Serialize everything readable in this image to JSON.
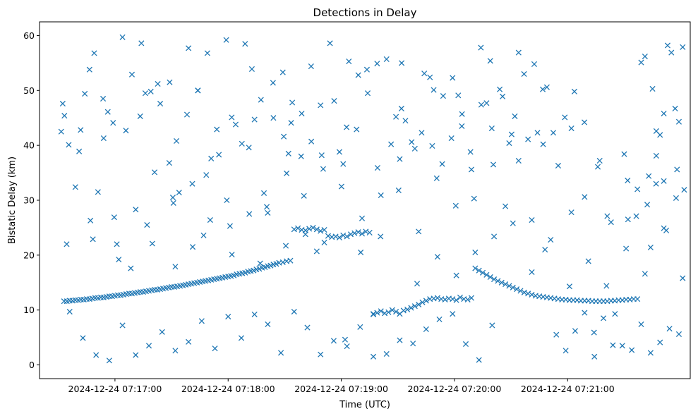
{
  "chart_data": {
    "type": "scatter",
    "title": "Detections in Delay",
    "xlabel": "Time (UTC)",
    "ylabel": "Bistatic Delay (km)",
    "xlim_seconds_of_day": [
      26180,
      26525
    ],
    "ylim": [
      -2.5,
      62.5
    ],
    "x_ticks": [
      {
        "t": 26220,
        "label": "2024-12-24 07:17:00"
      },
      {
        "t": 26280,
        "label": "2024-12-24 07:18:00"
      },
      {
        "t": 26340,
        "label": "2024-12-24 07:19:00"
      },
      {
        "t": 26400,
        "label": "2024-12-24 07:20:00"
      },
      {
        "t": 26460,
        "label": "2024-12-24 07:21:00"
      }
    ],
    "y_ticks": [
      0,
      10,
      20,
      30,
      40,
      50,
      60
    ],
    "marker": "x",
    "color": "#1f77b4",
    "grid": false,
    "series": [
      {
        "time_of_day_seconds": [
          26193.0,
          26194.5,
          26196.0,
          26197.5,
          26199.0,
          26200.5,
          26202.0,
          26203.5,
          26205.0,
          26206.5,
          26208.0,
          26209.5,
          26211.0,
          26212.5,
          26214.0,
          26215.5,
          26217.0,
          26218.5,
          26220.0,
          26221.5,
          26223.0,
          26224.5,
          26226.0,
          26227.5,
          26229.0,
          26230.5,
          26232.0,
          26233.5,
          26235.0,
          26236.5,
          26238.0,
          26239.5,
          26241.0,
          26242.5,
          26244.0,
          26245.5,
          26247.0,
          26248.5,
          26250.0,
          26251.5,
          26253.0,
          26254.5,
          26256.0,
          26257.5,
          26259.0,
          26260.5,
          26262.0,
          26263.5,
          26265.0,
          26266.5,
          26268.0,
          26269.5,
          26271.0,
          26272.5,
          26274.0,
          26275.5,
          26277.0,
          26278.5,
          26280.0,
          26281.5,
          26283.0,
          26284.5,
          26286.0,
          26287.5,
          26289.0,
          26290.5,
          26292.0,
          26293.5,
          26295.0,
          26296.5,
          26298.0,
          26299.5,
          26301.0,
          26302.5,
          26304.0,
          26305.5,
          26307.0,
          26309.0,
          26311.0,
          26313.0,
          26315.0,
          26317.0,
          26319.0,
          26321.0,
          26323.0,
          26325.0,
          26327.0,
          26329.0,
          26331.0,
          26333.0,
          26335.0,
          26337.0,
          26339.0,
          26341.0,
          26343.0,
          26345.0,
          26347.0,
          26349.0,
          26351.0,
          26353.0,
          26355.0,
          26357.0,
          26359.0,
          26361.0,
          26363.0,
          26365.0,
          26367.0,
          26369.0,
          26371.0,
          26373.0,
          26375.0,
          26377.0,
          26379.0,
          26381.0,
          26383.0,
          26385.0,
          26387.0,
          26389.0,
          26391.0,
          26393.0,
          26395.0,
          26397.0,
          26399.0,
          26401.0,
          26403.0,
          26405.0,
          26407.0,
          26409.0,
          26411.0,
          26413.0,
          26415.0,
          26417.0,
          26419.0,
          26421.0,
          26423.0,
          26425.0,
          26427.0,
          26429.0,
          26431.0,
          26433.0,
          26435.0,
          26437.0,
          26439.0,
          26441.0,
          26443.0,
          26445.0,
          26447.0,
          26449.0,
          26451.0,
          26453.0,
          26455.0,
          26457.0,
          26459.0,
          26461.0,
          26463.0,
          26465.0,
          26467.0,
          26469.0,
          26471.0,
          26473.0,
          26475.0,
          26477.0,
          26479.0,
          26481.0,
          26483.0,
          26485.0,
          26487.0,
          26489.0,
          26491.0,
          26493.0,
          26495.0,
          26497.0,
          26499.0,
          26501.0,
          26503.0,
          26505.0,
          26507.0,
          26509.0,
          26511.0,
          26513.0,
          26515.0,
          26517.0,
          26519.0,
          26521.0,
          26199.0,
          26204.0,
          26209.0,
          26214.0,
          26219.0,
          26224.0,
          26229.0,
          26234.0,
          26239.0,
          26244.0,
          26249.0,
          26254.0,
          26259.0,
          26264.0,
          26269.0,
          26274.0,
          26279.0,
          26284.0,
          26289.0,
          26294.0,
          26299.0,
          26304.0,
          26309.0,
          26314.0,
          26319.0,
          26324.0,
          26329.0,
          26334.0,
          26339.0,
          26344.0,
          26349.0,
          26354.0,
          26359.0,
          26364.0,
          26369.0,
          26374.0,
          26379.0,
          26384.0,
          26389.0,
          26394.0,
          26399.0,
          26404.0,
          26409.0,
          26414.0,
          26419.0,
          26424.0,
          26429.0,
          26434.0,
          26439.0,
          26444.0,
          26449.0,
          26454.0,
          26459.0,
          26464.0,
          26469.0,
          26474.0,
          26479.0,
          26484.0,
          26489.0,
          26494.0,
          26499.0,
          26504.0,
          26509.0,
          26514.0,
          26519.0,
          26196.0,
          26203.0,
          26210.0,
          26217.0,
          26224.0,
          26231.0,
          26238.0,
          26245.0,
          26252.0,
          26259.0,
          26266.0,
          26273.0,
          26280.0,
          26287.0,
          26294.0,
          26301.0,
          26308.0,
          26315.0,
          26322.0,
          26329.0,
          26336.0,
          26343.0,
          26350.0,
          26357.0,
          26364.0,
          26371.0,
          26378.0,
          26385.0,
          26392.0,
          26399.0,
          26406.0,
          26413.0,
          26420.0,
          26427.0,
          26434.0,
          26441.0,
          26448.0,
          26455.0,
          26462.0,
          26469.0,
          26476.0,
          26483.0,
          26490.0,
          26497.0,
          26504.0,
          26511.0,
          26518.0,
          26201.0,
          26211.0,
          26221.0,
          26231.0,
          26241.0,
          26251.0,
          26261.0,
          26271.0,
          26281.0,
          26291.0,
          26301.0,
          26311.0,
          26321.0,
          26331.0,
          26341.0,
          26351.0,
          26361.0,
          26371.0,
          26381.0,
          26391.0,
          26401.0,
          26411.0,
          26421.0,
          26431.0,
          26441.0,
          26451.0,
          26461.0,
          26471.0,
          26481.0,
          26491.0,
          26501.0,
          26511.0,
          26521.0,
          26207.0,
          26222.0,
          26237.0,
          26252.0,
          26267.0,
          26282.0,
          26297.0,
          26312.0,
          26327.0,
          26342.0,
          26357.0,
          26372.0,
          26387.0,
          26402.0,
          26417.0,
          26432.0,
          26447.0,
          26462.0,
          26477.0,
          26492.0,
          26507.0,
          26191.5,
          26192.3,
          26193.2,
          26195.5,
          26201.8,
          26206.5,
          26213.7,
          26216.2,
          26225.8,
          26233.4,
          26236.1,
          26242.7,
          26248.8,
          26252.6,
          26258.2,
          26263.9,
          26268.4,
          26275.1,
          26281.9,
          26287.3,
          26292.6,
          26297.4,
          26303.8,
          26309.5,
          26313.4,
          26318.7,
          26324.1,
          26329.6,
          26336.2,
          26342.8,
          26348.1,
          26353.6,
          26359.2,
          26366.4,
          26371.9,
          26377.3,
          26382.6,
          26388.2,
          26393.5,
          26398.4,
          26403.9,
          26408.5,
          26414.2,
          26419.8,
          26425.5,
          26430.3,
          26436.9,
          26442.3,
          26446.8,
          26452.4,
          26458.5,
          26463.6,
          26468.9,
          26474.2,
          26480.6,
          26485.1,
          26491.8,
          26496.4,
          26502.2,
          26506.9,
          26512.3,
          26517.5,
          26521.8,
          26194.4,
          26208.3,
          26219.6,
          26228.4,
          26239.8,
          26250.7,
          26261.2,
          26270.5,
          26279.3,
          26291.2,
          26300.5,
          26310.6,
          26320.2,
          26330.4,
          26340.1,
          26350.3,
          26360.8,
          26370.4,
          26380.2,
          26390.6,
          26400.7,
          26410.4,
          26420.6,
          26430.8,
          26440.2,
          26450.6,
          26460.3,
          26470.5,
          26480.1,
          26490.7,
          26500.2,
          26510.6,
          26520.3
        ],
        "delay_km": [
          11.6,
          11.6,
          11.7,
          11.7,
          11.8,
          11.8,
          11.9,
          11.9,
          12.0,
          12.0,
          12.1,
          12.2,
          12.2,
          12.3,
          12.3,
          12.4,
          12.5,
          12.5,
          12.6,
          12.7,
          12.7,
          12.8,
          12.9,
          13.0,
          13.0,
          13.1,
          13.2,
          13.3,
          13.3,
          13.4,
          13.5,
          13.6,
          13.7,
          13.7,
          13.8,
          13.9,
          14.0,
          14.1,
          14.2,
          14.2,
          14.3,
          14.4,
          14.5,
          14.6,
          14.7,
          14.8,
          14.9,
          15.0,
          15.1,
          15.2,
          15.3,
          15.4,
          15.5,
          15.6,
          15.7,
          15.8,
          15.9,
          16.0,
          16.1,
          16.2,
          16.3,
          16.5,
          16.6,
          16.7,
          16.8,
          17.0,
          17.1,
          17.2,
          17.4,
          17.5,
          17.7,
          17.8,
          18.0,
          18.1,
          18.3,
          18.4,
          18.6,
          18.7,
          18.9,
          19.0,
          24.7,
          24.9,
          24.6,
          24.5,
          24.8,
          25.0,
          24.7,
          24.4,
          24.6,
          23.5,
          23.3,
          23.4,
          23.2,
          23.6,
          23.4,
          23.8,
          24.0,
          24.2,
          23.9,
          24.3,
          24.1,
          9.2,
          9.5,
          9.8,
          9.4,
          9.6,
          10.0,
          9.7,
          9.3,
          9.9,
          10.1,
          10.4,
          10.7,
          11.0,
          11.4,
          11.7,
          12.0,
          12.1,
          12.2,
          12.0,
          11.9,
          12.1,
          12.0,
          11.8,
          12.3,
          12.0,
          11.9,
          12.2,
          17.6,
          17.2,
          16.8,
          16.4,
          16.0,
          15.6,
          15.3,
          15.0,
          14.7,
          14.4,
          14.1,
          13.8,
          13.5,
          13.2,
          13.0,
          12.8,
          12.6,
          12.5,
          12.4,
          12.3,
          12.2,
          12.1,
          12.0,
          11.9,
          11.9,
          11.8,
          11.8,
          11.8,
          11.7,
          11.7,
          11.7,
          11.6,
          11.6,
          11.6,
          11.6,
          11.6,
          11.7,
          11.7,
          11.8,
          11.8,
          11.9,
          11.9,
          12.0,
          12.0,
          55.1,
          56.2,
          34.4,
          50.3,
          42.6,
          41.9,
          45.8,
          58.2,
          56.9,
          46.7,
          44.3,
          57.9,
          32.4,
          49.4,
          56.8,
          41.3,
          44.1,
          59.7,
          52.9,
          58.6,
          49.8,
          47.6,
          51.5,
          31.4,
          57.7,
          50.0,
          56.8,
          42.9,
          59.2,
          43.8,
          58.5,
          44.7,
          31.3,
          45.0,
          53.3,
          47.8,
          45.8,
          54.4,
          47.3,
          58.6,
          38.8,
          55.3,
          52.8,
          49.5,
          54.9,
          55.7,
          45.2,
          44.5,
          39.4,
          53.1,
          50.1,
          49.0,
          52.3,
          45.7,
          35.6,
          57.8,
          55.4,
          50.2,
          40.4,
          56.9,
          41.1,
          42.3,
          50.6,
          5.5,
          2.6,
          6.2,
          9.5,
          5.9,
          8.5,
          3.6,
          3.5,
          2.7,
          7.4,
          2.2,
          4.1,
          6.6,
          5.6,
          9.7,
          4.9,
          1.8,
          0.8,
          7.2,
          1.8,
          3.5,
          6.0,
          2.6,
          4.2,
          8.0,
          3.0,
          8.8,
          4.9,
          9.2,
          7.4,
          2.2,
          9.7,
          6.8,
          1.9,
          4.4,
          3.4,
          6.9,
          1.5,
          2.0,
          4.5,
          3.9,
          6.5,
          8.3,
          9.3,
          3.8,
          0.9,
          7.2,
          28.9,
          37.2,
          26.4,
          21.0,
          36.3,
          27.8,
          30.6,
          36.1,
          26.0,
          38.4,
          32.0,
          21.4,
          33.5,
          35.6,
          38.9,
          31.5,
          22.0,
          28.3,
          35.1,
          29.5,
          33.0,
          37.6,
          25.3,
          39.6,
          27.7,
          34.9,
          23.8,
          22.3,
          36.6,
          26.7,
          30.9,
          37.5,
          24.3,
          19.7,
          16.3,
          20.5,
          23.4,
          25.8,
          16.9,
          22.8,
          14.3,
          18.9,
          27.1,
          21.2,
          16.6,
          24.9,
          15.8,
          26.3,
          19.2,
          25.5,
          17.9,
          23.6,
          20.1,
          18.5,
          38.5,
          20.7,
          4.6,
          9.3,
          55.0,
          52.4,
          49.1,
          47.7,
          45.3,
          40.2,
          43.1,
          37.2,
          26.5,
          38.1,
          42.5,
          47.6,
          45.4,
          40.1,
          42.8,
          53.8,
          48.5,
          46.1,
          42.7,
          45.3,
          49.5,
          51.2,
          36.8,
          40.8,
          45.6,
          50.0,
          34.6,
          38.3,
          45.1,
          40.3,
          53.9,
          48.3,
          51.4,
          41.6,
          44.1,
          38.0,
          40.7,
          38.2,
          48.1,
          43.3,
          42.9,
          53.8,
          35.9,
          40.2,
          46.7,
          40.6,
          42.3,
          39.9,
          36.6,
          41.3,
          43.5,
          38.8,
          47.4,
          43.1,
          48.9,
          42.0,
          53.0,
          54.8,
          50.2,
          42.3,
          45.1,
          49.8,
          44.2,
          1.5,
          14.4,
          9.3,
          33.6,
          27.1,
          29.2,
          33.0,
          24.5,
          30.4,
          31.9,
          22.0,
          22.9,
          26.9,
          17.6,
          22.1,
          30.5,
          21.5,
          26.4,
          30.0,
          27.5,
          28.8,
          21.7,
          30.8,
          35.7,
          32.5,
          20.5,
          23.4,
          31.8,
          14.8,
          34.0,
          29.0,
          30.3,
          36.5
        ]
      }
    ]
  }
}
